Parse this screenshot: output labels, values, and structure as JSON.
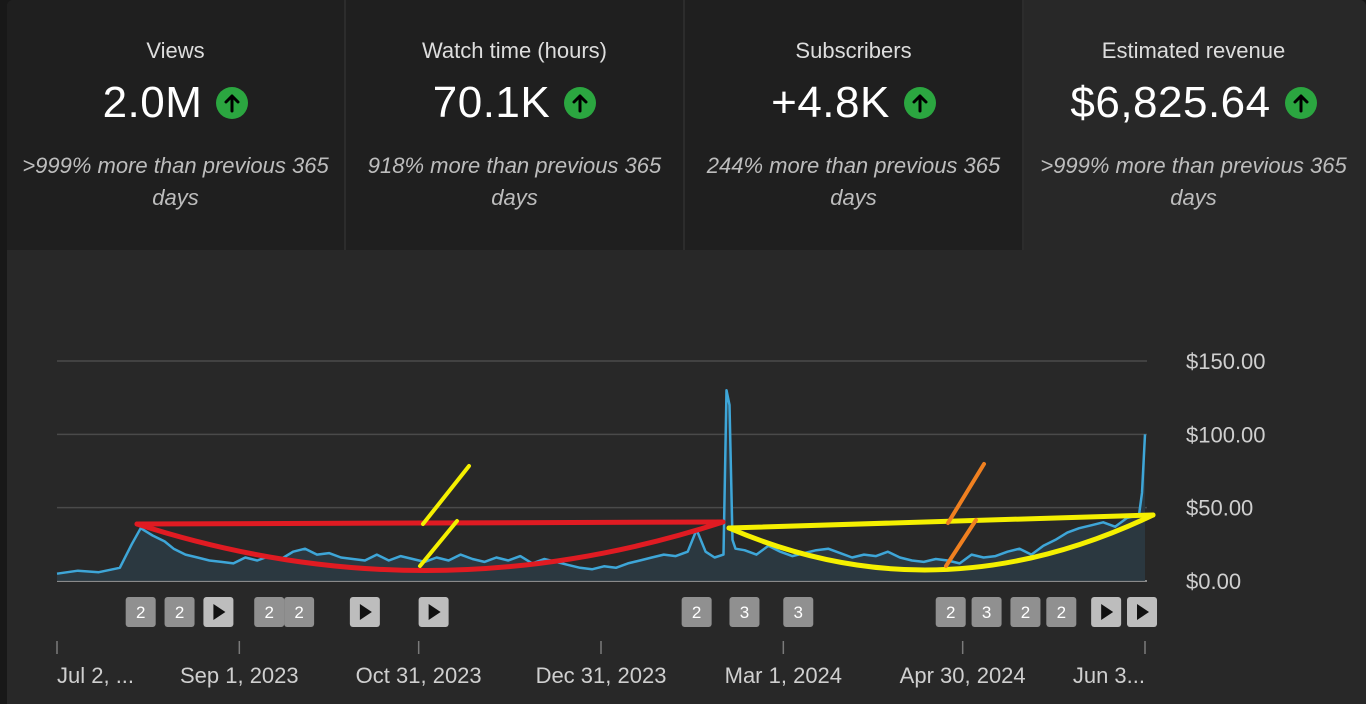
{
  "cards": [
    {
      "title": "Views",
      "value": "2.0M",
      "sub": ">999% more than previous 365 days",
      "trend_icon": "arrow-up-circle-icon"
    },
    {
      "title": "Watch time (hours)",
      "value": "70.1K",
      "sub": "918% more than previous 365 days",
      "trend_icon": "arrow-up-circle-icon"
    },
    {
      "title": "Subscribers",
      "value": "+4.8K",
      "sub": "244% more than previous 365 days",
      "trend_icon": "arrow-up-circle-icon"
    },
    {
      "title": "Estimated revenue",
      "value": "$6,825.64",
      "sub": ">999% more than previous 365 days",
      "trend_icon": "arrow-up-circle-icon"
    }
  ],
  "colors": {
    "accent_up": "#2ba640",
    "line": "#3ea6d8",
    "area": "#2b3a42",
    "annotation_red": "#e01b22",
    "annotation_yellow": "#f5f000",
    "annotation_orange": "#f08020"
  },
  "chart_data": {
    "type": "area",
    "ylim": [
      0,
      150
    ],
    "y_ticks": [
      150,
      100,
      50,
      0
    ],
    "y_tick_labels": [
      "$150.00",
      "$100.00",
      "$50.00",
      "$0.00"
    ],
    "x_range": [
      "2023-07-02",
      "2024-06-30"
    ],
    "x_tick_dates": [
      "2023-07-02",
      "2023-09-01",
      "2023-10-31",
      "2023-12-31",
      "2024-03-01",
      "2024-04-30",
      "2024-06-30"
    ],
    "x_tick_labels": [
      "Jul 2, ...",
      "Sep 1, 2023",
      "Oct 31, 2023",
      "Dec 31, 2023",
      "Mar 1, 2024",
      "Apr 30, 2024",
      "Jun 3..."
    ],
    "grid": true,
    "series": [
      {
        "x": [
          "2023-07-02",
          "2023-07-09",
          "2023-07-16",
          "2023-07-23",
          "2023-07-27",
          "2023-07-30",
          "2023-08-03",
          "2023-08-07",
          "2023-08-10",
          "2023-08-14",
          "2023-08-18",
          "2023-08-22",
          "2023-08-26",
          "2023-08-30",
          "2023-09-03",
          "2023-09-07",
          "2023-09-11",
          "2023-09-15",
          "2023-09-19",
          "2023-09-23",
          "2023-09-27",
          "2023-10-01",
          "2023-10-05",
          "2023-10-09",
          "2023-10-13",
          "2023-10-17",
          "2023-10-21",
          "2023-10-25",
          "2023-10-29",
          "2023-11-02",
          "2023-11-06",
          "2023-11-10",
          "2023-11-14",
          "2023-11-18",
          "2023-11-22",
          "2023-11-26",
          "2023-11-30",
          "2023-12-04",
          "2023-12-08",
          "2023-12-12",
          "2023-12-16",
          "2023-12-20",
          "2023-12-24",
          "2023-12-28",
          "2024-01-01",
          "2024-01-05",
          "2024-01-09",
          "2024-01-13",
          "2024-01-17",
          "2024-01-21",
          "2024-01-25",
          "2024-01-29",
          "2024-02-01",
          "2024-02-04",
          "2024-02-07",
          "2024-02-10",
          "2024-02-11",
          "2024-02-12",
          "2024-02-13",
          "2024-02-14",
          "2024-02-17",
          "2024-02-21",
          "2024-02-25",
          "2024-02-29",
          "2024-03-04",
          "2024-03-08",
          "2024-03-12",
          "2024-03-16",
          "2024-03-20",
          "2024-03-24",
          "2024-03-28",
          "2024-04-01",
          "2024-04-05",
          "2024-04-09",
          "2024-04-13",
          "2024-04-17",
          "2024-04-21",
          "2024-04-25",
          "2024-04-29",
          "2024-05-03",
          "2024-05-07",
          "2024-05-11",
          "2024-05-15",
          "2024-05-19",
          "2024-05-23",
          "2024-05-27",
          "2024-05-31",
          "2024-06-04",
          "2024-06-08",
          "2024-06-12",
          "2024-06-16",
          "2024-06-20",
          "2024-06-24",
          "2024-06-28",
          "2024-06-29",
          "2024-06-30"
        ],
        "y": [
          5,
          7,
          6,
          9,
          25,
          36,
          31,
          27,
          22,
          18,
          16,
          14,
          13,
          12,
          16,
          14,
          17,
          15,
          20,
          22,
          18,
          19,
          16,
          15,
          14,
          18,
          14,
          17,
          15,
          13,
          16,
          14,
          18,
          15,
          13,
          16,
          14,
          17,
          12,
          15,
          13,
          11,
          9,
          8,
          10,
          9,
          12,
          14,
          16,
          18,
          17,
          20,
          35,
          20,
          16,
          18,
          130,
          120,
          28,
          22,
          21,
          18,
          24,
          20,
          17,
          19,
          21,
          22,
          19,
          16,
          18,
          17,
          20,
          16,
          14,
          13,
          15,
          14,
          12,
          18,
          16,
          17,
          20,
          22,
          18,
          24,
          28,
          33,
          36,
          38,
          40,
          37,
          43,
          45,
          60,
          100
        ]
      }
    ]
  },
  "annotations": {
    "markers": [
      {
        "type": "text",
        "label": "2",
        "date": "2023-07-30"
      },
      {
        "type": "text",
        "label": "2",
        "date": "2023-08-12"
      },
      {
        "type": "icon",
        "icon": "play-icon",
        "date": "2023-08-25"
      },
      {
        "type": "text",
        "label": "2",
        "date": "2023-09-11"
      },
      {
        "type": "text",
        "label": "2",
        "date": "2023-09-21"
      },
      {
        "type": "icon",
        "icon": "play-icon",
        "date": "2023-10-13"
      },
      {
        "type": "icon",
        "icon": "play-icon",
        "date": "2023-11-05"
      },
      {
        "type": "text",
        "label": "2",
        "date": "2024-02-01"
      },
      {
        "type": "text",
        "label": "3",
        "date": "2024-02-17"
      },
      {
        "type": "text",
        "label": "3",
        "date": "2024-03-06"
      },
      {
        "type": "text",
        "label": "2",
        "date": "2024-04-26"
      },
      {
        "type": "text",
        "label": "3",
        "date": "2024-05-08"
      },
      {
        "type": "text",
        "label": "2",
        "date": "2024-05-21"
      },
      {
        "type": "text",
        "label": "2",
        "date": "2024-06-02"
      },
      {
        "type": "icon",
        "icon": "play-icon",
        "date": "2024-06-17"
      },
      {
        "type": "icon",
        "icon": "play-icon",
        "date": "2024-06-29"
      }
    ]
  }
}
